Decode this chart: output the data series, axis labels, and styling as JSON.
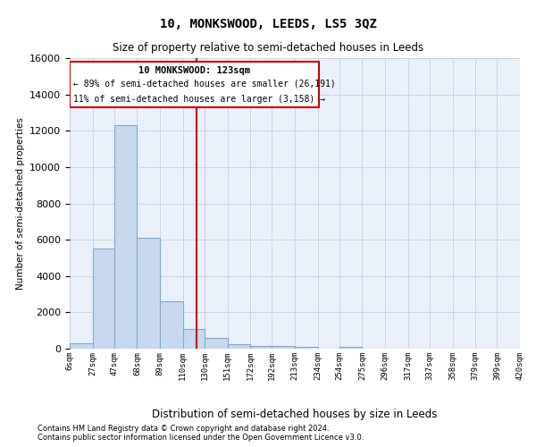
{
  "title": "10, MONKSWOOD, LEEDS, LS5 3QZ",
  "subtitle": "Size of property relative to semi-detached houses in Leeds",
  "xlabel": "Distribution of semi-detached houses by size in Leeds",
  "ylabel": "Number of semi-detached properties",
  "footer_line1": "Contains HM Land Registry data © Crown copyright and database right 2024.",
  "footer_line2": "Contains public sector information licensed under the Open Government Licence v3.0.",
  "property_label": "10 MONKSWOOD: 123sqm",
  "annotation_left": "← 89% of semi-detached houses are smaller (26,191)",
  "annotation_right": "11% of semi-detached houses are larger (3,158) →",
  "property_size": 123,
  "bin_edges": [
    6,
    27,
    47,
    68,
    89,
    110,
    130,
    151,
    172,
    192,
    213,
    234,
    254,
    275,
    296,
    317,
    337,
    358,
    379,
    399,
    420
  ],
  "bar_values": [
    300,
    5500,
    12300,
    6100,
    2600,
    1100,
    600,
    250,
    150,
    130,
    100,
    0,
    100,
    0,
    0,
    0,
    0,
    0,
    0,
    0
  ],
  "bar_color": "#c8d9ef",
  "bar_edge_color": "#7aaad0",
  "grid_color": "#c8d4e8",
  "bg_color": "#eaf0fa",
  "line_color": "#cc0000",
  "annotation_box_color": "#cc0000",
  "ylim": [
    0,
    16000
  ],
  "yticks": [
    0,
    2000,
    4000,
    6000,
    8000,
    10000,
    12000,
    14000,
    16000
  ]
}
